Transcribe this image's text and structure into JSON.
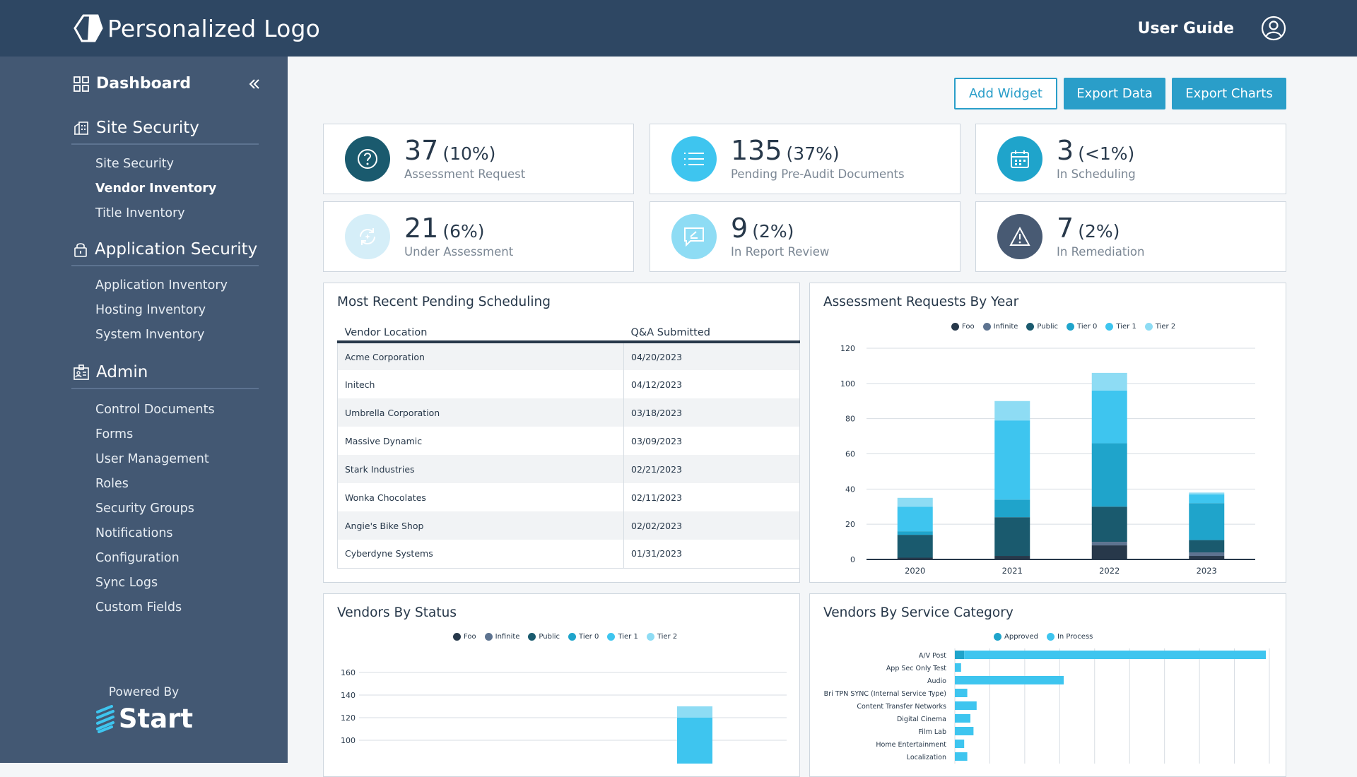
{
  "header": {
    "logo_text": "Personalized Logo",
    "user_guide": "User Guide",
    "icon": "user-icon"
  },
  "sidebar": {
    "dashboard_label": "Dashboard",
    "sections": [
      {
        "title": "Site Security",
        "icon": "building-icon",
        "items": [
          "Site Security",
          "Vendor Inventory",
          "Title Inventory"
        ],
        "active": "Vendor Inventory"
      },
      {
        "title": "Application Security",
        "icon": "lock-icon",
        "items": [
          "Application Inventory",
          "Hosting Inventory",
          "System Inventory"
        ]
      },
      {
        "title": "Admin",
        "icon": "admin-icon",
        "items": [
          "Control Documents",
          "Forms",
          "User Management",
          "Roles",
          "Security Groups",
          "Notifications",
          "Configuration",
          "Sync Logs",
          "Custom Fields"
        ]
      }
    ],
    "powered_by": "Powered By",
    "brand": "Start"
  },
  "toolbar": {
    "add_widget": "Add Widget",
    "export_data": "Export Data",
    "export_charts": "Export Charts"
  },
  "stats": [
    {
      "value": "37",
      "pct": "(10%)",
      "label": "Assessment Request",
      "icon": "question-icon",
      "color": "#1a5a6e"
    },
    {
      "value": "135",
      "pct": "(37%)",
      "label": "Pending Pre-Audit Documents",
      "icon": "list-icon",
      "color": "#3ec5ef"
    },
    {
      "value": "3",
      "pct": "(<1%)",
      "label": "In Scheduling",
      "icon": "calendar-icon",
      "color": "#1fa4cb"
    },
    {
      "value": "21",
      "pct": "(6%)",
      "label": "Under Assessment",
      "icon": "refresh-icon",
      "color": "#d5eef8"
    },
    {
      "value": "9",
      "pct": "(2%)",
      "label": "In Report Review",
      "icon": "comment-icon",
      "color": "#8edcf4"
    },
    {
      "value": "7",
      "pct": "(2%)",
      "label": "In Remediation",
      "icon": "warning-icon",
      "color": "#485a73"
    }
  ],
  "scheduling": {
    "title": "Most Recent Pending Scheduling",
    "columns": [
      "Vendor Location",
      "Q&A Submitted"
    ],
    "rows": [
      [
        "Acme Corporation",
        "04/20/2023"
      ],
      [
        "Initech",
        "04/12/2023"
      ],
      [
        "Umbrella Corporation",
        "03/18/2023"
      ],
      [
        "Massive Dynamic",
        "03/09/2023"
      ],
      [
        "Stark Industries",
        "02/21/2023"
      ],
      [
        "Wonka Chocolates",
        "02/11/2023"
      ],
      [
        "Angie's Bike Shop",
        "02/02/2023"
      ],
      [
        "Cyberdyne Systems",
        "01/31/2023"
      ]
    ]
  },
  "chart_data": [
    {
      "type": "bar",
      "stacked": true,
      "title": "Assessment Requests By Year",
      "categories": [
        "2020",
        "2021",
        "2022",
        "2023"
      ],
      "ylim": [
        0,
        120
      ],
      "yticks": [
        0,
        20,
        40,
        60,
        80,
        100,
        120
      ],
      "series": [
        {
          "name": "Foo",
          "color": "#27384a",
          "values": [
            1,
            2,
            8,
            2
          ]
        },
        {
          "name": "Infinite",
          "color": "#5d7390",
          "values": [
            0,
            0,
            2,
            2
          ]
        },
        {
          "name": "Public",
          "color": "#1a5a6e",
          "values": [
            13,
            22,
            20,
            7
          ]
        },
        {
          "name": "Tier 0",
          "color": "#1fa4cb",
          "values": [
            2,
            10,
            36,
            21
          ]
        },
        {
          "name": "Tier 1",
          "color": "#3ec5ef",
          "values": [
            14,
            45,
            30,
            5
          ]
        },
        {
          "name": "Tier 2",
          "color": "#8edcf4",
          "values": [
            5,
            11,
            10,
            1
          ]
        }
      ]
    },
    {
      "type": "bar",
      "stacked": true,
      "title": "Vendors By Status",
      "legend": [
        "Foo",
        "Infinite",
        "Public",
        "Tier 0",
        "Tier 1",
        "Tier 2"
      ],
      "colors": [
        "#27384a",
        "#5d7390",
        "#1a5a6e",
        "#1fa4cb",
        "#3ec5ef",
        "#8edcf4"
      ],
      "yticks": [
        160,
        140,
        120,
        100
      ],
      "visible_bar": {
        "tier1_top": 120,
        "tier2_top": 130
      }
    },
    {
      "type": "bar",
      "orientation": "horizontal",
      "stacked": true,
      "title": "Vendors By Service Category",
      "categories": [
        "A/V Post",
        "App Sec Only Test",
        "Audio",
        "Bri TPN SYNC (Internal Service Type)",
        "Content Transfer Networks",
        "Digital Cinema",
        "Film Lab",
        "Home Entertainment",
        "Localization"
      ],
      "series": [
        {
          "name": "Approved",
          "color": "#1fa4cb",
          "values": [
            3,
            0,
            0,
            0,
            0,
            0,
            0,
            0,
            0
          ]
        },
        {
          "name": "In Process",
          "color": "#3ec5ef",
          "values": [
            97,
            2,
            35,
            4,
            7,
            5,
            6,
            3,
            4
          ]
        }
      ]
    }
  ]
}
